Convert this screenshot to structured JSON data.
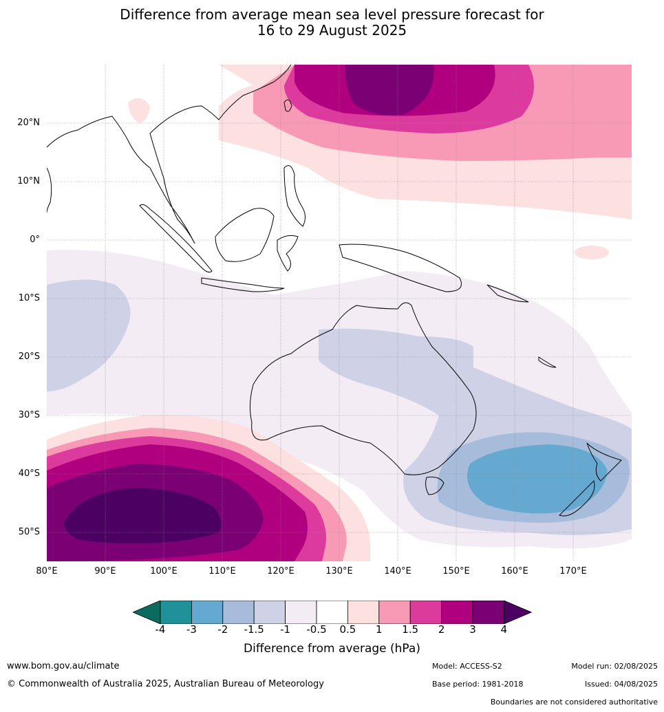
{
  "title_line1": "Difference from average mean sea level pressure forecast for",
  "title_line2": "16 to 29 August 2025",
  "lat_labels": [
    "20°N",
    "10°N",
    "0°",
    "10°S",
    "20°S",
    "30°S",
    "40°S",
    "50°S"
  ],
  "lon_labels": [
    "80°E",
    "90°E",
    "100°E",
    "110°E",
    "120°E",
    "130°E",
    "140°E",
    "150°E",
    "160°E",
    "170°E"
  ],
  "colorbar": {
    "ticks": [
      "-4",
      "-3",
      "-2",
      "-1.5",
      "-1",
      "-0.5",
      "0.5",
      "1",
      "1.5",
      "2",
      "3",
      "4"
    ],
    "colors": [
      "#0a6b5e",
      "#1f9199",
      "#66a9d0",
      "#a6bcda",
      "#cfd2e6",
      "#f3ecf5",
      "#ffffff",
      "#fde0e0",
      "#f89ab5",
      "#dc3a9c",
      "#b0007f",
      "#7a0074",
      "#4c0062"
    ],
    "label": "Difference from average (hPa)"
  },
  "footer": {
    "website": "www.bom.gov.au/climate",
    "copyright": "© Commonwealth of Australia 2025, Australian Bureau of Meteorology",
    "model": "Model: ACCESS-S2",
    "base_period": "Base period: 1981-2018",
    "model_run": "Model run: 02/08/2025",
    "issued": "Issued: 04/08/2025",
    "disclaimer": "Boundaries are not considered authoritative"
  }
}
